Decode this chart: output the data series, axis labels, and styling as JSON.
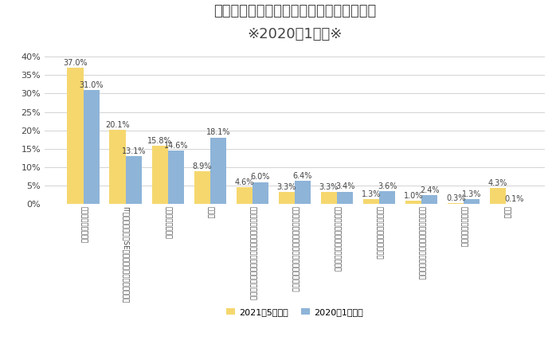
{
  "title_line1": "転職の際に魅力を感じる職種（単一回答）",
  "title_line2": "※2020年1月比※",
  "categories": [
    "企画・事務・管理系",
    "ITエンジニア系（SE・システム開発・インフラ）",
    "クリエイティブ系",
    "就業系",
    "販売・サービス系（ファッション、フード、小売）",
    "専門サービス系（医療、福祉、教育、その他）",
    "技術系（医薬、化学、素材、食品）",
    "技術系（電気、電子、機械）",
    "施設・設備管理、技能工、運輸・物流系",
    "技術系（建築、土木）",
    "その他"
  ],
  "values_2021": [
    37.0,
    20.1,
    15.8,
    8.9,
    4.6,
    3.3,
    3.3,
    1.3,
    1.0,
    0.3,
    4.3
  ],
  "values_2020": [
    31.0,
    13.1,
    14.6,
    18.1,
    6.0,
    6.4,
    3.4,
    3.6,
    2.4,
    1.3,
    0.1
  ],
  "color_2021": "#F5D76E",
  "color_2020": "#8EB4D8",
  "legend_2021": "2021年5月調査",
  "legend_2020": "2020年1月調査",
  "ylim": [
    0,
    42
  ],
  "yticks": [
    0,
    5,
    10,
    15,
    20,
    25,
    30,
    35,
    40
  ],
  "background_color": "#FFFFFF",
  "grid_color": "#CCCCCC",
  "label_fontsize": 7.0,
  "tick_label_fontsize": 6.2,
  "title_fontsize1": 13,
  "title_fontsize2": 11,
  "legend_fontsize": 8
}
